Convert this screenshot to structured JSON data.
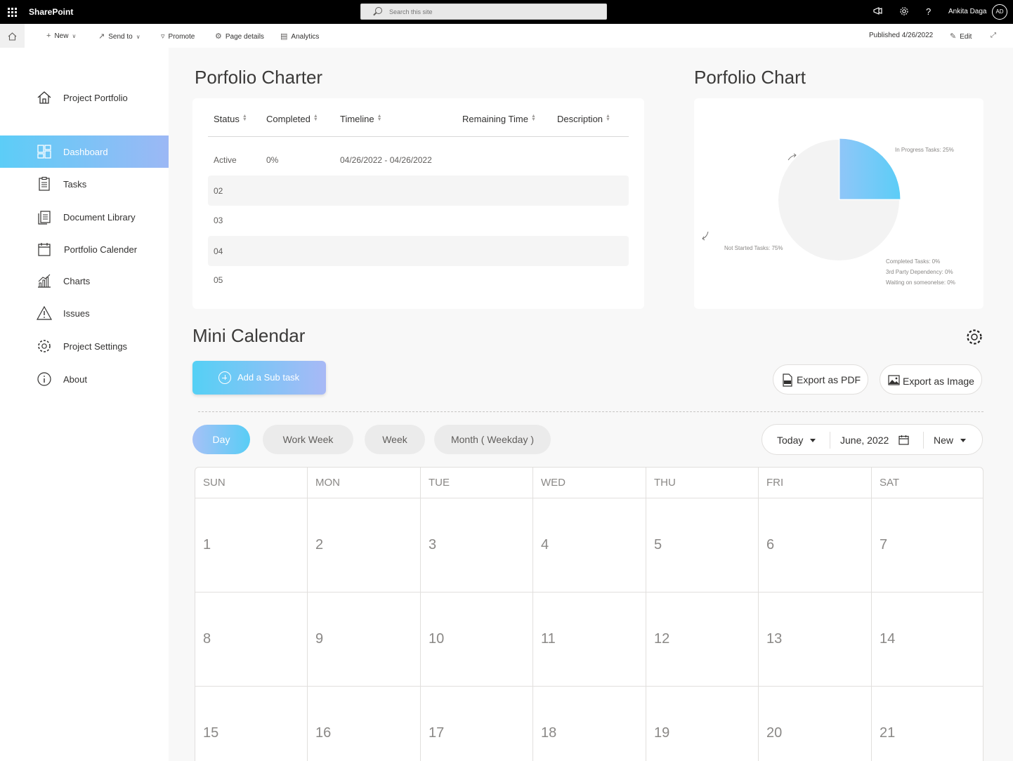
{
  "suitebar": {
    "brand": "SharePoint",
    "search_placeholder": "Search this site",
    "user_name": "Ankita Daga",
    "user_initials": "AD"
  },
  "commandbar": {
    "new": "New",
    "send_to": "Send to",
    "promote": "Promote",
    "page_details": "Page details",
    "analytics": "Analytics",
    "published": "Published 4/26/2022",
    "edit": "Edit"
  },
  "nav": {
    "items": [
      {
        "label": "Project Portfolio",
        "icon": "home-icon"
      },
      {
        "label": "Dashboard",
        "icon": "dashboard-icon",
        "active": true
      },
      {
        "label": "Tasks",
        "icon": "clipboard-icon"
      },
      {
        "label": "Document Library",
        "icon": "documents-icon"
      },
      {
        "label": "Portfolio Calender",
        "icon": "calendar-icon"
      },
      {
        "label": "Charts",
        "icon": "bar-chart-icon"
      },
      {
        "label": "Issues",
        "icon": "warning-icon"
      },
      {
        "label": "Project Settings",
        "icon": "gear-icon"
      },
      {
        "label": "About",
        "icon": "info-icon"
      }
    ]
  },
  "charter": {
    "title": "Porfolio Charter",
    "columns": [
      "Status",
      "Completed",
      "Timeline",
      "Remaining Time",
      "Description"
    ],
    "rows": [
      {
        "status": "Active",
        "completed": "0%",
        "timeline": "04/26/2022 - 04/26/2022",
        "remaining": "",
        "description": ""
      },
      {
        "status": "02",
        "completed": "",
        "timeline": "",
        "remaining": "",
        "description": ""
      },
      {
        "status": "03",
        "completed": "",
        "timeline": "",
        "remaining": "",
        "description": ""
      },
      {
        "status": "04",
        "completed": "",
        "timeline": "",
        "remaining": "",
        "description": ""
      },
      {
        "status": "05",
        "completed": "",
        "timeline": "",
        "remaining": "",
        "description": ""
      }
    ]
  },
  "chart": {
    "title": "Porfolio Chart",
    "labels": {
      "in_progress": "In Progress Tasks: 25%",
      "not_started": "Not Started Tasks: 75%",
      "completed": "Completed Tasks: 0%",
      "third_party": "3rd Party Dependency: 0%",
      "waiting": "Waiting on someonelse: 0%"
    },
    "colors": {
      "in_progress": "#5ccdf7",
      "not_started": "#f3f3f3"
    }
  },
  "chart_data": {
    "type": "pie",
    "categories": [
      "In Progress Tasks",
      "Not Started Tasks",
      "Completed Tasks",
      "3rd Party Dependency",
      "Waiting on someonelse"
    ],
    "values": [
      25,
      75,
      0,
      0,
      0
    ]
  },
  "mini_calendar": {
    "title": "Mini Calendar",
    "add_subtask": "Add a Sub task",
    "export_pdf": "Export as PDF",
    "export_image": "Export as Image",
    "views": [
      "Day",
      "Work Week",
      "Week",
      "Month ( Weekday )"
    ],
    "active_view": "Day",
    "today": "Today",
    "month": "June, 2022",
    "new": "New",
    "weekdays": [
      "SUN",
      "MON",
      "TUE",
      "WED",
      "THU",
      "FRI",
      "SAT"
    ],
    "weeks": [
      [
        "1",
        "2",
        "3",
        "4",
        "5",
        "6",
        "7"
      ],
      [
        "8",
        "9",
        "10",
        "11",
        "12",
        "13",
        "14"
      ],
      [
        "15",
        "16",
        "17",
        "18",
        "19",
        "20",
        "21"
      ]
    ]
  }
}
